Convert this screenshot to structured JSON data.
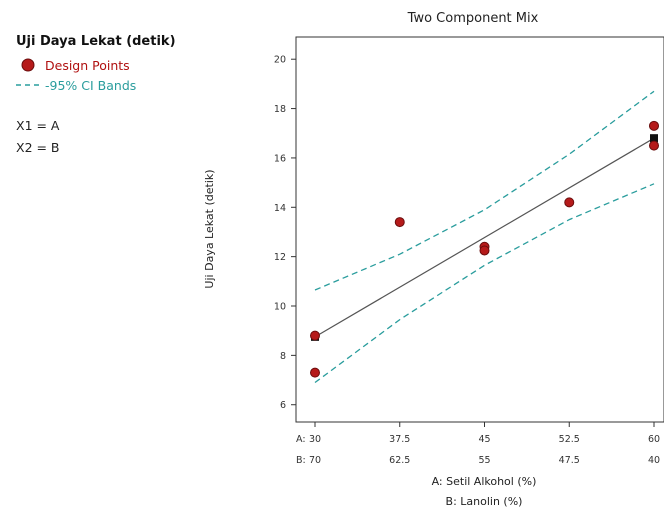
{
  "legend": {
    "title": "Uji Daya Lekat (detik)",
    "points_label": "Design Points",
    "ci_label": "-95% CI Bands",
    "factor1": "X1 = A",
    "factor2": "X2 = B"
  },
  "colors": {
    "points": "#b51a1a",
    "fit_line": "#555555",
    "ci_bands": "#2a9d9d",
    "axes": "#333333"
  },
  "chart_data": {
    "type": "line",
    "title": "Two Component Mix",
    "ylabel": "Uji Daya Lekat (detik)",
    "xlabel": "A: Setil Alkohol (%)",
    "xlabel2": "B: Lanolin (%)",
    "x_row_prefix": "A:",
    "x2_row_prefix": "B:",
    "xlim": [
      30,
      60
    ],
    "ylim": [
      5.3,
      20.9
    ],
    "x_ticks": [
      "30",
      "37.5",
      "45",
      "52.5",
      "60"
    ],
    "x_tick_values": [
      30,
      37.5,
      45,
      52.5,
      60
    ],
    "x2_ticks": [
      "70",
      "62.5",
      "55",
      "47.5",
      "40"
    ],
    "y_ticks": [
      "6",
      "8",
      "10",
      "12",
      "14",
      "16",
      "18",
      "20"
    ],
    "y_tick_values": [
      6,
      8,
      10,
      12,
      14,
      16,
      18,
      20
    ],
    "fit_line": {
      "x": [
        30,
        60
      ],
      "y": [
        8.75,
        16.8
      ]
    },
    "ci_upper": {
      "x": [
        30,
        37.5,
        45,
        52.5,
        60
      ],
      "y": [
        10.65,
        12.1,
        13.9,
        16.15,
        18.7
      ]
    },
    "ci_lower": {
      "x": [
        30,
        37.5,
        45,
        52.5,
        60
      ],
      "y": [
        6.9,
        9.45,
        11.65,
        13.5,
        14.95
      ]
    },
    "design_points": [
      {
        "x": 30,
        "y": 8.8
      },
      {
        "x": 30,
        "y": 7.3
      },
      {
        "x": 37.5,
        "y": 13.4
      },
      {
        "x": 45,
        "y": 12.4
      },
      {
        "x": 45,
        "y": 12.25
      },
      {
        "x": 52.5,
        "y": 14.2
      },
      {
        "x": 60,
        "y": 17.3
      },
      {
        "x": 60,
        "y": 16.5
      }
    ],
    "endpoint_markers": [
      {
        "x": 30,
        "y": 8.75
      },
      {
        "x": 60,
        "y": 16.8
      }
    ]
  }
}
